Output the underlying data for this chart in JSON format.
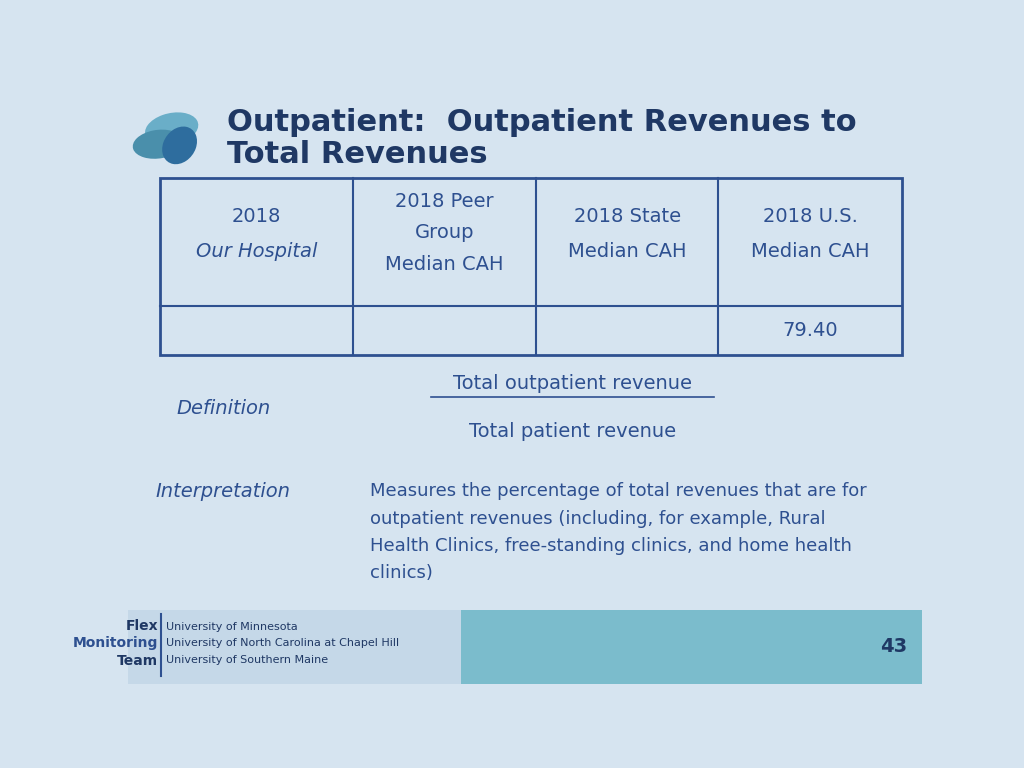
{
  "title_line1": "Outpatient:  Outpatient Revenues to",
  "title_line2": "Total Revenues",
  "title_color": "#1F3864",
  "bg_color": "#D6E4F0",
  "table_values": [
    "",
    "",
    "",
    "79.40"
  ],
  "text_color": "#2E5090",
  "definition_label": "Definition",
  "definition_numerator": "Total outpatient revenue",
  "definition_denominator": "Total patient revenue",
  "interpretation_label": "Interpretation",
  "interpretation_text": "Measures the percentage of total revenues that are for\noutpatient revenues (including, for example, Rural\nHealth Clinics, free-standing clinics, and home health\nclinics)",
  "page_number": "43",
  "table_border_color": "#2E5090",
  "footer_left_line1": "University of Minnesota",
  "footer_left_line2": "University of North Carolina at Chapel Hill",
  "footer_left_line3": "University of Southern Maine",
  "footer_flex": "Flex",
  "footer_monitoring": "Monitoring",
  "footer_team": "Team"
}
